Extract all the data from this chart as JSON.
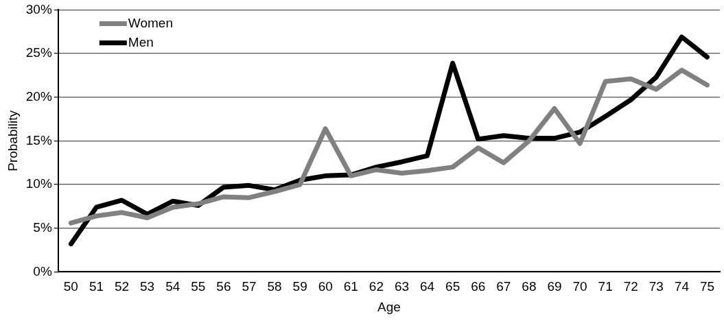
{
  "chart_data": {
    "type": "line",
    "xlabel": "Age",
    "ylabel": "Probability",
    "categories": [
      "50",
      "51",
      "52",
      "53",
      "54",
      "55",
      "56",
      "57",
      "58",
      "59",
      "60",
      "61",
      "62",
      "63",
      "64",
      "65",
      "66",
      "67",
      "68",
      "69",
      "70",
      "71",
      "72",
      "73",
      "74",
      "75"
    ],
    "series": [
      {
        "name": "Women",
        "color": "#808080",
        "values": [
          5.6,
          6.4,
          6.8,
          6.2,
          7.4,
          7.8,
          8.6,
          8.5,
          9.2,
          10.0,
          16.4,
          11.0,
          11.7,
          11.3,
          11.6,
          12.0,
          14.2,
          12.5,
          15.0,
          18.7,
          14.7,
          21.8,
          22.1,
          20.9,
          23.1,
          21.4
        ]
      },
      {
        "name": "Men",
        "color": "#000000",
        "values": [
          3.2,
          7.4,
          8.2,
          6.6,
          8.1,
          7.6,
          9.7,
          9.9,
          9.4,
          10.5,
          11.0,
          11.1,
          12.0,
          12.6,
          13.3,
          23.9,
          15.2,
          15.6,
          15.3,
          15.3,
          16.0,
          17.8,
          19.7,
          22.3,
          26.9,
          24.6
        ]
      }
    ],
    "ylim": [
      0,
      30
    ],
    "yticks": [
      {
        "value": 0,
        "label": "0%"
      },
      {
        "value": 5,
        "label": "5%"
      },
      {
        "value": 10,
        "label": "10%"
      },
      {
        "value": 15,
        "label": "15%"
      },
      {
        "value": 20,
        "label": "20%"
      },
      {
        "value": 25,
        "label": "25%"
      },
      {
        "value": 30,
        "label": "30%"
      }
    ],
    "grid": "y",
    "legend": "top left",
    "marker": "none",
    "line_style": "solid"
  }
}
